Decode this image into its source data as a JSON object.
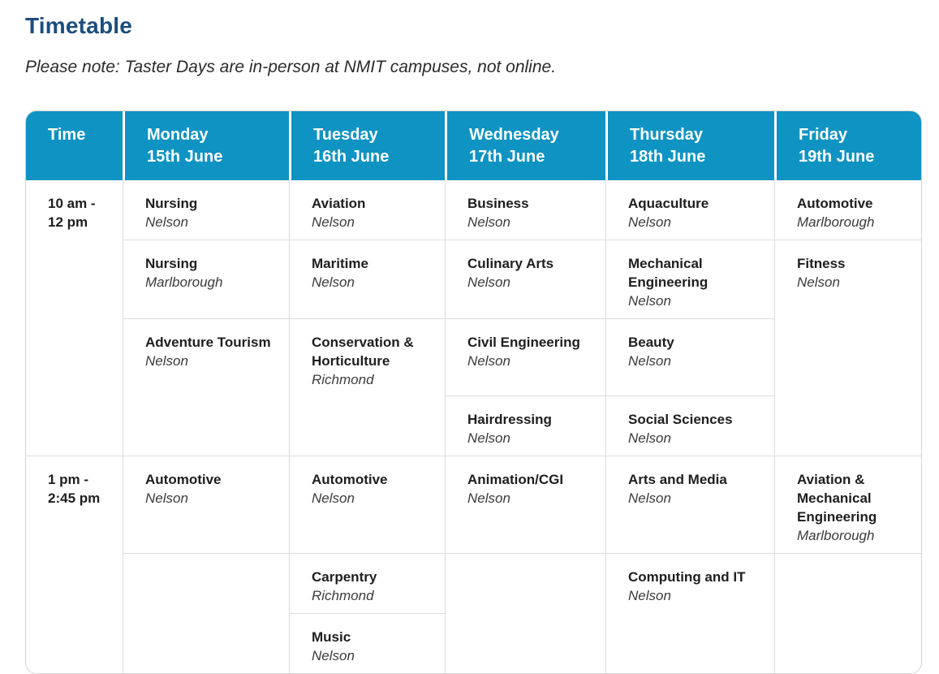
{
  "page": {
    "title": "Timetable",
    "note": "Please note: Taster Days are in-person at NMIT campuses, not online."
  },
  "colors": {
    "header_bg": "#0f93c2",
    "header_text": "#ffffff",
    "title": "#1c4d7d",
    "grid_border": "#dcdcdc"
  },
  "timetable": {
    "header": {
      "time": "Time",
      "days": [
        {
          "day": "Monday",
          "date": "15th June"
        },
        {
          "day": "Tuesday",
          "date": "16th June"
        },
        {
          "day": "Wednesday",
          "date": "17th June"
        },
        {
          "day": "Thursday",
          "date": "18th June"
        },
        {
          "day": "Friday",
          "date": "19th June"
        }
      ]
    },
    "slots": [
      {
        "line1": "10 am -",
        "line2": "12 pm"
      },
      {
        "line1": "1 pm -",
        "line2": "2:45 pm"
      }
    ],
    "entries": {
      "mon_a": {
        "name": "Nursing",
        "campus": "Nelson"
      },
      "mon_b": {
        "name": "Nursing",
        "campus": "Marlborough"
      },
      "mon_cd": {
        "name": "Adventure Tourism",
        "campus": "Nelson"
      },
      "mon_e": {
        "name": "Automotive",
        "campus": "Nelson"
      },
      "tue_a": {
        "name": "Aviation",
        "campus": "Nelson"
      },
      "tue_b": {
        "name": "Maritime",
        "campus": "Nelson"
      },
      "tue_cd": {
        "name": "Conservation & Horticulture",
        "campus": "Richmond"
      },
      "tue_e": {
        "name": "Automotive",
        "campus": "Nelson"
      },
      "tue_f": {
        "name": "Carpentry",
        "campus": "Richmond"
      },
      "tue_g": {
        "name": "Music",
        "campus": "Nelson"
      },
      "wed_a": {
        "name": "Business",
        "campus": "Nelson"
      },
      "wed_b": {
        "name": "Culinary Arts",
        "campus": "Nelson"
      },
      "wed_c": {
        "name": "Civil Engineering",
        "campus": "Nelson"
      },
      "wed_d": {
        "name": "Hairdressing",
        "campus": "Nelson"
      },
      "wed_e": {
        "name": "Animation/CGI",
        "campus": "Nelson"
      },
      "thu_a": {
        "name": "Aquaculture",
        "campus": "Nelson"
      },
      "thu_b": {
        "name": "Mechanical Engineering",
        "campus": "Nelson"
      },
      "thu_c": {
        "name": "Beauty",
        "campus": "Nelson"
      },
      "thu_d": {
        "name": "Social Sciences",
        "campus": "Nelson"
      },
      "thu_e": {
        "name": "Arts and Media",
        "campus": "Nelson"
      },
      "thu_fg": {
        "name": "Computing and IT",
        "campus": "Nelson"
      },
      "fri_a": {
        "name": "Automotive",
        "campus": "Marlborough"
      },
      "fri_bcd": {
        "name": "Fitness",
        "campus": "Nelson"
      },
      "fri_e": {
        "name": "Aviation & Mechanical Engineering",
        "campus": "Marlborough"
      }
    }
  }
}
